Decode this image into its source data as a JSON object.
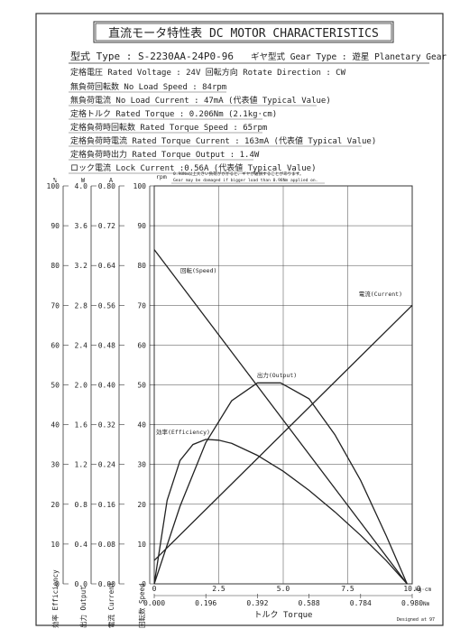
{
  "header": {
    "title": "直流モータ特性表 DC MOTOR CHARACTERISTICS",
    "model_label": "型式 Type : S-2230AA-24P0-96",
    "gear_label": "ギヤ型式 Gear Type : 遊星 Planetary Gear"
  },
  "specs": [
    "定格電圧 Rated Voltage : 24V   回転方向 Rotate Direction : CW",
    "無負荷回転数 No Load Speed : 84rpm",
    "無負荷電流 No Load Current : 47mA (代表値 Typical Value)",
    "定格トルク Rated Torque : 0.206Nm (2.1kg·cm)",
    "定格負荷時回転数 Rated Torque Speed : 65rpm",
    "定格負荷時電流 Rated Torque Current : 163mA (代表値 Typical Value)",
    "定格負荷時出力 Rated Torque Output : 1.4W",
    "ロック電流 Lock Current :0.56A (代表値 Typical Value)"
  ],
  "notes": [
    "0.98Nm以上大きい負荷がかかると、ギヤが破損することがあります。",
    "Gear may be damaged if bigger load than 0.98Nm applied on."
  ],
  "footer": {
    "designed_by": "Designed at 97"
  },
  "chart_data": {
    "type": "line",
    "xlabel": "トルク Torque",
    "x_unit_top": "kg·cm",
    "x_unit_bottom": "Nm",
    "x_ticks_kgcm": [
      "0",
      "2.5",
      "5.0",
      "7.5",
      "10.0"
    ],
    "x_ticks_nm": [
      "0.000",
      "0.196",
      "0.392",
      "0.588",
      "0.784",
      "0.980"
    ],
    "xlim": [
      0,
      10.0
    ],
    "y_axes": [
      {
        "id": "efficiency",
        "unit": "%",
        "label": "効率 Efficiency",
        "ticks": [
          "0",
          "10",
          "20",
          "30",
          "40",
          "50",
          "60",
          "70",
          "80",
          "90",
          "100"
        ],
        "range": [
          0,
          100
        ]
      },
      {
        "id": "output",
        "unit": "W",
        "label": "出力 Output",
        "ticks": [
          "0.0",
          "0.4",
          "0.8",
          "1.2",
          "1.6",
          "2.0",
          "2.4",
          "2.8",
          "3.2",
          "3.6",
          "4.0"
        ],
        "range": [
          0,
          4.0
        ]
      },
      {
        "id": "current",
        "unit": "A",
        "label": "電流 Current",
        "ticks": [
          "0.00",
          "0.08",
          "0.16",
          "0.24",
          "0.32",
          "0.40",
          "0.48",
          "0.56",
          "0.64",
          "0.72",
          "0.80"
        ],
        "range": [
          0,
          0.8
        ]
      },
      {
        "id": "speed",
        "unit": "rpm",
        "label": "回転数 Speed",
        "ticks": [
          "0",
          "10",
          "20",
          "30",
          "40",
          "50",
          "60",
          "70",
          "80",
          "90",
          "100"
        ],
        "range": [
          0,
          100
        ]
      }
    ],
    "grid": true,
    "series": [
      {
        "name": "回転(Speed)",
        "axis": "speed",
        "x": [
          0,
          9.8
        ],
        "y": [
          84,
          0
        ]
      },
      {
        "name": "電流(Current)",
        "axis": "current",
        "x": [
          0,
          10.0
        ],
        "y": [
          0.047,
          0.56
        ]
      },
      {
        "name": "出力(Output)",
        "axis": "output",
        "x": [
          0,
          1,
          2,
          3,
          4,
          4.9,
          6,
          7,
          8,
          9,
          9.8
        ],
        "y": [
          0,
          0.78,
          1.42,
          1.84,
          2.02,
          2.02,
          1.86,
          1.5,
          1.04,
          0.48,
          0
        ]
      },
      {
        "name": "効率(Efficiency)",
        "axis": "efficiency",
        "x": [
          0,
          0.5,
          1,
          1.5,
          2,
          2.5,
          3,
          4,
          5,
          6,
          7,
          8,
          9,
          9.8
        ],
        "y": [
          0,
          21,
          31,
          35,
          36.3,
          36.1,
          35.3,
          32.3,
          28.3,
          23.5,
          18.1,
          12.2,
          5.8,
          0
        ]
      }
    ]
  }
}
